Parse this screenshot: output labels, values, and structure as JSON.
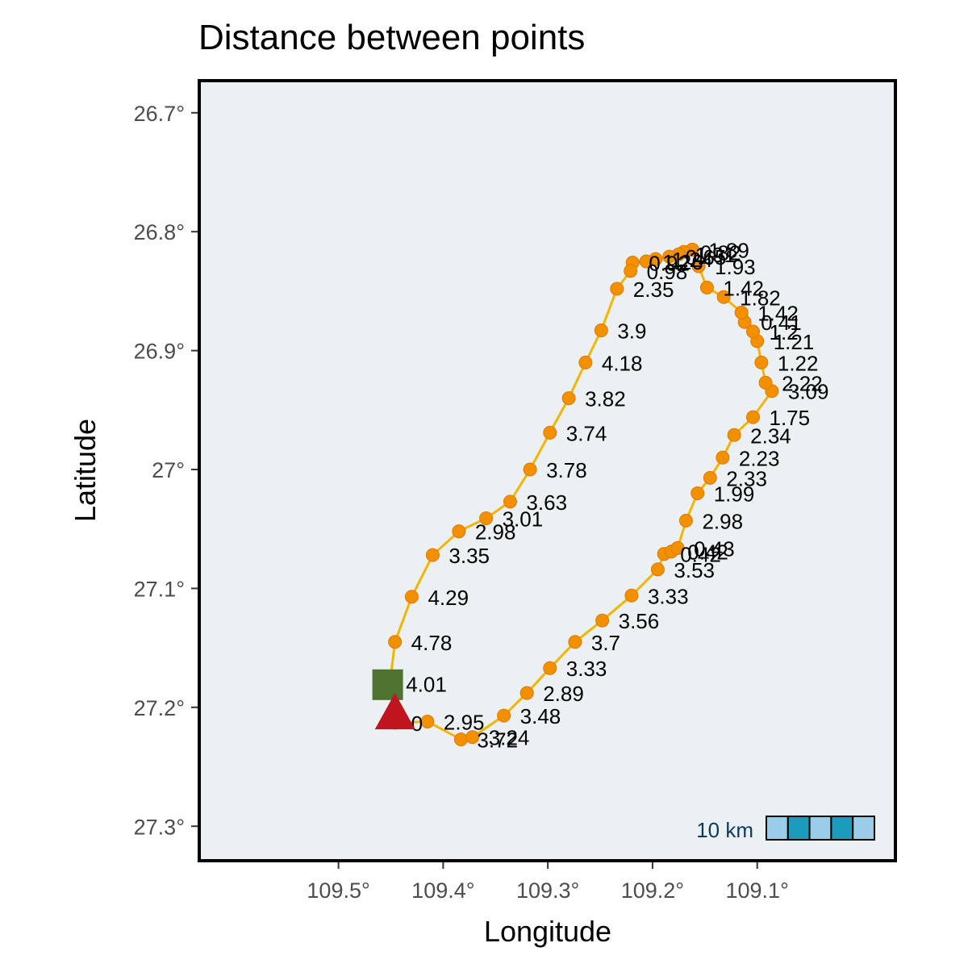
{
  "chart_data": {
    "type": "map",
    "title": "Distance between points",
    "xlabel": "Longitude",
    "ylabel": "Latitude",
    "x_axis": {
      "ticks": [
        109.5,
        109.4,
        109.3,
        109.2,
        109.1
      ],
      "tick_labels": [
        "109.5°",
        "109.4°",
        "109.3°",
        "109.2°",
        "109.1°"
      ],
      "range": [
        109.633,
        108.968
      ],
      "reversed": true
    },
    "y_axis": {
      "ticks": [
        26.7,
        26.8,
        26.9,
        27.0,
        27.1,
        27.2,
        27.3
      ],
      "tick_labels": [
        "26.7°",
        "26.8°",
        "26.9°",
        "27°",
        "27.1°",
        "27.2°",
        "27.3°"
      ],
      "range": [
        26.673,
        27.329
      ],
      "reversed": true
    },
    "colors": {
      "panel": "#ebf1f3",
      "route": "#f5b400",
      "points": "#f39000",
      "start": "#4e7330",
      "end": "#c0141f",
      "label": "#000000"
    },
    "route": [
      {
        "lon": 109.446,
        "lat": 27.213,
        "label": "0"
      },
      {
        "lon": 109.415,
        "lat": 27.212,
        "label": "2.95"
      },
      {
        "lon": 109.383,
        "lat": 27.227,
        "label": "3.72"
      },
      {
        "lon": 109.372,
        "lat": 27.225,
        "label": "3.24"
      },
      {
        "lon": 109.342,
        "lat": 27.207,
        "label": "3.48"
      },
      {
        "lon": 109.32,
        "lat": 27.188,
        "label": "2.89"
      },
      {
        "lon": 109.298,
        "lat": 27.167,
        "label": "3.33"
      },
      {
        "lon": 109.274,
        "lat": 27.145,
        "label": "3.7"
      },
      {
        "lon": 109.248,
        "lat": 27.127,
        "label": "3.56"
      },
      {
        "lon": 109.22,
        "lat": 27.106,
        "label": "3.33"
      },
      {
        "lon": 109.195,
        "lat": 27.084,
        "label": "3.53"
      },
      {
        "lon": 109.189,
        "lat": 27.071,
        "label": "0.42"
      },
      {
        "lon": 109.182,
        "lat": 27.069,
        "label": "0.42"
      },
      {
        "lon": 109.176,
        "lat": 27.066,
        "label": "0.43"
      },
      {
        "lon": 109.168,
        "lat": 27.043,
        "label": "2.98"
      },
      {
        "lon": 109.157,
        "lat": 27.02,
        "label": "1.99"
      },
      {
        "lon": 109.145,
        "lat": 27.007,
        "label": "2.33"
      },
      {
        "lon": 109.133,
        "lat": 26.99,
        "label": "2.23"
      },
      {
        "lon": 109.122,
        "lat": 26.971,
        "label": "2.34"
      },
      {
        "lon": 109.104,
        "lat": 26.956,
        "label": "1.75"
      },
      {
        "lon": 109.086,
        "lat": 26.934,
        "label": "3.09"
      },
      {
        "lon": 109.092,
        "lat": 26.927,
        "label": "2.22"
      },
      {
        "lon": 109.096,
        "lat": 26.91,
        "label": "1.22"
      },
      {
        "lon": 109.1,
        "lat": 26.892,
        "label": "1.21"
      },
      {
        "lon": 109.104,
        "lat": 26.884,
        "label": "1.2"
      },
      {
        "lon": 109.112,
        "lat": 26.876,
        "label": "0.41"
      },
      {
        "lon": 109.115,
        "lat": 26.868,
        "label": "1.42"
      },
      {
        "lon": 109.132,
        "lat": 26.855,
        "label": "1.82"
      },
      {
        "lon": 109.148,
        "lat": 26.847,
        "label": "1.42"
      },
      {
        "lon": 109.156,
        "lat": 26.829,
        "label": "1.93"
      },
      {
        "lon": 109.162,
        "lat": 26.815,
        "label": "1.89"
      },
      {
        "lon": 109.17,
        "lat": 26.817,
        "label": "0.82"
      },
      {
        "lon": 109.175,
        "lat": 26.819,
        "label": "1.91"
      },
      {
        "lon": 109.184,
        "lat": 26.821,
        "label": "0.65"
      },
      {
        "lon": 109.197,
        "lat": 26.823,
        "label": "1.24"
      },
      {
        "lon": 109.206,
        "lat": 26.825,
        "label": "1.26"
      },
      {
        "lon": 109.219,
        "lat": 26.826,
        "label": "0.92"
      },
      {
        "lon": 109.221,
        "lat": 26.833,
        "label": "0.98"
      },
      {
        "lon": 109.234,
        "lat": 26.848,
        "label": "2.35"
      },
      {
        "lon": 109.249,
        "lat": 26.883,
        "label": "3.9"
      },
      {
        "lon": 109.264,
        "lat": 26.91,
        "label": "4.18"
      },
      {
        "lon": 109.28,
        "lat": 26.94,
        "label": "3.82"
      },
      {
        "lon": 109.298,
        "lat": 26.969,
        "label": "3.74"
      },
      {
        "lon": 109.317,
        "lat": 27.0,
        "label": "3.78"
      },
      {
        "lon": 109.336,
        "lat": 27.027,
        "label": "3.63"
      },
      {
        "lon": 109.359,
        "lat": 27.041,
        "label": "3.01"
      },
      {
        "lon": 109.385,
        "lat": 27.052,
        "label": "2.98"
      },
      {
        "lon": 109.41,
        "lat": 27.072,
        "label": "3.35"
      },
      {
        "lon": 109.43,
        "lat": 27.107,
        "label": "4.29"
      },
      {
        "lon": 109.446,
        "lat": 27.145,
        "label": "4.78"
      },
      {
        "lon": 109.451,
        "lat": 27.18,
        "label": "4.01"
      }
    ],
    "start_marker": {
      "lon": 109.453,
      "lat": 27.181,
      "shape": "square"
    },
    "end_marker": {
      "lon": 109.446,
      "lat": 27.207,
      "shape": "triangle"
    },
    "scale_bar": {
      "label": "10 km",
      "segments": 5,
      "colors": [
        "#99cde8",
        "#1a9dbd"
      ]
    }
  }
}
